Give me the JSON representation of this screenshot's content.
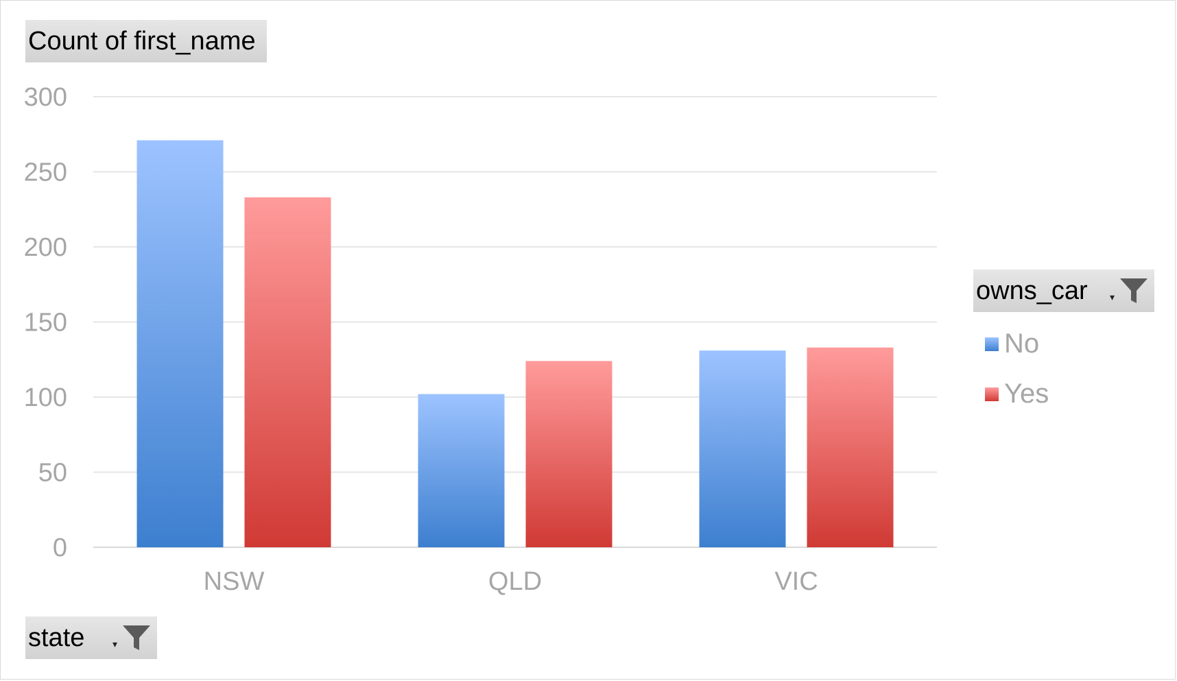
{
  "chart_data": {
    "type": "bar",
    "title": "",
    "value_field_label": "Count of first_name",
    "legend_field_label": "owns_car",
    "axis_field_label": "state",
    "categories": [
      "NSW",
      "QLD",
      "VIC"
    ],
    "series": [
      {
        "name": "No",
        "values": [
          271,
          102,
          131
        ],
        "color_top": "#9dc3ff",
        "color_bottom": "#3d7fcf"
      },
      {
        "name": "Yes",
        "values": [
          233,
          124,
          133
        ],
        "color_top": "#ff9b9b",
        "color_bottom": "#d03a35"
      }
    ],
    "ylim": [
      0,
      300
    ],
    "yticks": [
      0,
      50,
      100,
      150,
      200,
      250,
      300
    ],
    "grid": true,
    "legend_position": "right"
  },
  "icons": {
    "legend_filter": "filter-icon",
    "axis_filter": "filter-icon",
    "dropdown": "chevron-down-icon"
  }
}
